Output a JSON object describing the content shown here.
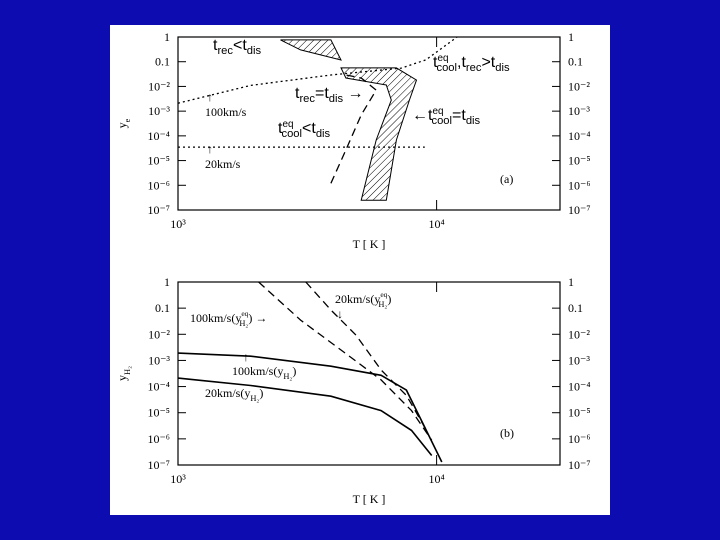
{
  "chart_data": [
    {
      "type": "line",
      "xlabel": "T [ K ]",
      "ylabel": [
        {
          "text": "y"
        },
        {
          "sub": "e"
        }
      ],
      "xscale": "log",
      "yscale": "log",
      "xlim": [
        1000,
        30000
      ],
      "ylim": [
        1e-07,
        1
      ],
      "xticks": [
        {
          "value": 1000,
          "label": "10³"
        },
        {
          "value": 10000,
          "label": "10⁴"
        }
      ],
      "yticks": [
        1,
        0.1,
        {
          "value": 0.01,
          "label": "10⁻²"
        },
        {
          "value": 0.001,
          "label": "10⁻³"
        },
        {
          "value": 0.0001,
          "label": "10⁻⁴"
        },
        {
          "value": 1e-05,
          "label": "10⁻⁵"
        },
        {
          "value": 1e-06,
          "label": "10⁻⁶"
        },
        {
          "value": 1e-07,
          "label": "10⁻⁷"
        }
      ],
      "series": [
        {
          "style": "dotted",
          "color": "#000000",
          "x": [
            1000,
            1910,
            3900,
            7300,
            9100,
            10500,
            12000
          ],
          "values": [
            0.0021,
            0.011,
            0.029,
            0.055,
            0.12,
            0.36,
            1
          ]
        },
        {
          "style": "dotted",
          "color": "#000000",
          "x": [
            1000,
            3000,
            6000,
            9000
          ],
          "values": [
            3.5e-05,
            3.5e-05,
            3.5e-05,
            3.5e-05
          ]
        },
        {
          "style": "dashed",
          "color": "#000000",
          "x": [
            3900,
            4460,
            5110,
            5840,
            5110,
            4460
          ],
          "values": [
            1.2e-06,
            2.7e-05,
            0.0007,
            0.0071,
            0.022,
            0.029
          ]
        },
        {
          "style": "hatch",
          "color": "#000000",
          "x": [
            2490,
            3900,
            4270,
            2980
          ],
          "values": [
            0.76,
            0.76,
            0.117,
            0.3
          ]
        },
        {
          "style": "hatch",
          "color": "#000000",
          "x": [
            4270,
            6990,
            8360,
            7850,
            6990,
            6390,
            5110,
            5840,
            6680,
            6390,
            4460
          ],
          "values": [
            0.056,
            0.056,
            0.018,
            0.0028,
            6.8e-05,
            2.5e-07,
            2.5e-07,
            6.8e-05,
            0.0028,
            0.0114,
            0.022
          ]
        }
      ],
      "annotations": [
        [
          {
            "text": "t"
          },
          {
            "sub": "rec"
          },
          {
            "text": "<t"
          },
          {
            "sub": "dis"
          }
        ],
        [
          {
            "text": "t"
          },
          {
            "sub": "rec"
          },
          {
            "text": "=t"
          },
          {
            "sub": "dis"
          },
          {
            "text": " →"
          }
        ],
        [
          {
            "text": "t"
          },
          {
            "supsub": [
              "eq",
              "cool"
            ]
          },
          {
            "text": "<t"
          },
          {
            "sub": "dis"
          }
        ],
        [
          {
            "text": "←t"
          },
          {
            "supsub": [
              "eq",
              "cool"
            ]
          },
          {
            "text": "=t"
          },
          {
            "sub": "dis"
          }
        ],
        [
          {
            "text": "t"
          },
          {
            "supsub": [
              "eq",
              "cool"
            ]
          },
          {
            "text": ",t"
          },
          {
            "sub": "rec"
          },
          {
            "text": ">t"
          },
          {
            "sub": "dis"
          }
        ],
        [
          {
            "text": "↑"
          }
        ],
        [
          {
            "text": "100km/s"
          }
        ],
        [
          {
            "text": "↑"
          }
        ],
        [
          {
            "text": "20km/s"
          }
        ],
        [
          {
            "text": "(a)"
          }
        ]
      ]
    },
    {
      "type": "line",
      "xlabel": "T [ K ]",
      "ylabel": [
        {
          "text": "y"
        },
        {
          "sub": "H₂"
        }
      ],
      "xscale": "log",
      "yscale": "log",
      "xlim": [
        1000,
        30000
      ],
      "ylim": [
        1e-07,
        1
      ],
      "xticks": [
        {
          "value": 1000,
          "label": "10³"
        },
        {
          "value": 10000,
          "label": "10⁴"
        }
      ],
      "yticks": [
        1,
        0.1,
        {
          "value": 0.01,
          "label": "10⁻²"
        },
        {
          "value": 0.001,
          "label": "10⁻³"
        },
        {
          "value": 0.0001,
          "label": "10⁻⁴"
        },
        {
          "value": 1e-05,
          "label": "10⁻⁵"
        },
        {
          "value": 1e-06,
          "label": "10⁻⁶"
        },
        {
          "value": 1e-07,
          "label": "10⁻⁷"
        }
      ],
      "series": [
        {
          "style": "solid",
          "color": "#000000",
          "x": [
            1000,
            1910,
            3900,
            6100,
            7640,
            8740,
            10470
          ],
          "values": [
            0.0019,
            0.00145,
            0.0006,
            0.00027,
            7.3e-05,
            5e-06,
            1.3e-07
          ]
        },
        {
          "style": "solid",
          "color": "#000000",
          "x": [
            1000,
            1910,
            3900,
            6100,
            8000,
            9570
          ],
          "values": [
            0.00021,
            0.00011,
            4.3e-05,
            1.2e-05,
            2.1e-06,
            2.3e-07
          ]
        },
        {
          "style": "dashed",
          "color": "#000000",
          "x": [
            2050,
            2980,
            4270,
            6100,
            8000,
            9570
          ],
          "values": [
            1,
            0.035,
            0.0025,
            0.00018,
            1.2e-05,
            8.9e-07
          ]
        },
        {
          "style": "dashed",
          "color": "#000000",
          "x": [
            3120,
            3900,
            4880,
            6100,
            7640,
            9140
          ],
          "values": [
            1,
            0.085,
            0.0093,
            0.00043,
            4.6e-05,
            2.1e-06
          ]
        }
      ],
      "annotations": [
        [
          {
            "text": "100km/s(y"
          },
          {
            "supsub": [
              "eq",
              "H₂"
            ]
          },
          {
            "text": ") →"
          }
        ],
        [
          {
            "text": "20km/s(y"
          },
          {
            "supsub": [
              "eq",
              "H₂"
            ]
          },
          {
            "text": ")"
          }
        ],
        [
          {
            "text": "↓"
          }
        ],
        [
          {
            "text": "↑"
          }
        ],
        [
          {
            "text": "100km/s(y"
          },
          {
            "sub": "H₂"
          },
          {
            "text": ")"
          }
        ],
        [
          {
            "text": "20km/s(y"
          },
          {
            "sub": "H₂"
          },
          {
            "text": ")"
          }
        ],
        [
          {
            "text": "(b)"
          }
        ]
      ]
    }
  ]
}
